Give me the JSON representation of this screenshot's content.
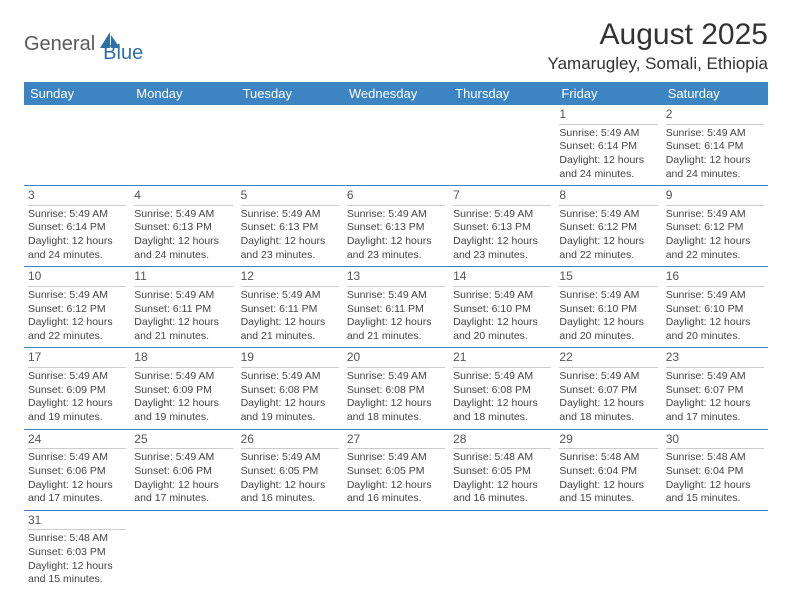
{
  "logo": {
    "general": "General",
    "blue": "Blue"
  },
  "title": "August 2025",
  "location": "Yamarugley, Somali, Ethiopia",
  "colors": {
    "header_bg": "#3d84c3",
    "header_text": "#ffffff",
    "row_border": "#3d84c3",
    "day_divider": "#cccccc",
    "logo_gray": "#5a5a5a",
    "logo_blue": "#2f6fa8",
    "body_text": "#444444",
    "title_text": "#333333"
  },
  "weekdays": [
    "Sunday",
    "Monday",
    "Tuesday",
    "Wednesday",
    "Thursday",
    "Friday",
    "Saturday"
  ],
  "first_weekday_index": 5,
  "days": [
    {
      "n": 1,
      "sunrise": "5:49 AM",
      "sunset": "6:14 PM",
      "daylight": "12 hours and 24 minutes."
    },
    {
      "n": 2,
      "sunrise": "5:49 AM",
      "sunset": "6:14 PM",
      "daylight": "12 hours and 24 minutes."
    },
    {
      "n": 3,
      "sunrise": "5:49 AM",
      "sunset": "6:14 PM",
      "daylight": "12 hours and 24 minutes."
    },
    {
      "n": 4,
      "sunrise": "5:49 AM",
      "sunset": "6:13 PM",
      "daylight": "12 hours and 24 minutes."
    },
    {
      "n": 5,
      "sunrise": "5:49 AM",
      "sunset": "6:13 PM",
      "daylight": "12 hours and 23 minutes."
    },
    {
      "n": 6,
      "sunrise": "5:49 AM",
      "sunset": "6:13 PM",
      "daylight": "12 hours and 23 minutes."
    },
    {
      "n": 7,
      "sunrise": "5:49 AM",
      "sunset": "6:13 PM",
      "daylight": "12 hours and 23 minutes."
    },
    {
      "n": 8,
      "sunrise": "5:49 AM",
      "sunset": "6:12 PM",
      "daylight": "12 hours and 22 minutes."
    },
    {
      "n": 9,
      "sunrise": "5:49 AM",
      "sunset": "6:12 PM",
      "daylight": "12 hours and 22 minutes."
    },
    {
      "n": 10,
      "sunrise": "5:49 AM",
      "sunset": "6:12 PM",
      "daylight": "12 hours and 22 minutes."
    },
    {
      "n": 11,
      "sunrise": "5:49 AM",
      "sunset": "6:11 PM",
      "daylight": "12 hours and 21 minutes."
    },
    {
      "n": 12,
      "sunrise": "5:49 AM",
      "sunset": "6:11 PM",
      "daylight": "12 hours and 21 minutes."
    },
    {
      "n": 13,
      "sunrise": "5:49 AM",
      "sunset": "6:11 PM",
      "daylight": "12 hours and 21 minutes."
    },
    {
      "n": 14,
      "sunrise": "5:49 AM",
      "sunset": "6:10 PM",
      "daylight": "12 hours and 20 minutes."
    },
    {
      "n": 15,
      "sunrise": "5:49 AM",
      "sunset": "6:10 PM",
      "daylight": "12 hours and 20 minutes."
    },
    {
      "n": 16,
      "sunrise": "5:49 AM",
      "sunset": "6:10 PM",
      "daylight": "12 hours and 20 minutes."
    },
    {
      "n": 17,
      "sunrise": "5:49 AM",
      "sunset": "6:09 PM",
      "daylight": "12 hours and 19 minutes."
    },
    {
      "n": 18,
      "sunrise": "5:49 AM",
      "sunset": "6:09 PM",
      "daylight": "12 hours and 19 minutes."
    },
    {
      "n": 19,
      "sunrise": "5:49 AM",
      "sunset": "6:08 PM",
      "daylight": "12 hours and 19 minutes."
    },
    {
      "n": 20,
      "sunrise": "5:49 AM",
      "sunset": "6:08 PM",
      "daylight": "12 hours and 18 minutes."
    },
    {
      "n": 21,
      "sunrise": "5:49 AM",
      "sunset": "6:08 PM",
      "daylight": "12 hours and 18 minutes."
    },
    {
      "n": 22,
      "sunrise": "5:49 AM",
      "sunset": "6:07 PM",
      "daylight": "12 hours and 18 minutes."
    },
    {
      "n": 23,
      "sunrise": "5:49 AM",
      "sunset": "6:07 PM",
      "daylight": "12 hours and 17 minutes."
    },
    {
      "n": 24,
      "sunrise": "5:49 AM",
      "sunset": "6:06 PM",
      "daylight": "12 hours and 17 minutes."
    },
    {
      "n": 25,
      "sunrise": "5:49 AM",
      "sunset": "6:06 PM",
      "daylight": "12 hours and 17 minutes."
    },
    {
      "n": 26,
      "sunrise": "5:49 AM",
      "sunset": "6:05 PM",
      "daylight": "12 hours and 16 minutes."
    },
    {
      "n": 27,
      "sunrise": "5:49 AM",
      "sunset": "6:05 PM",
      "daylight": "12 hours and 16 minutes."
    },
    {
      "n": 28,
      "sunrise": "5:48 AM",
      "sunset": "6:05 PM",
      "daylight": "12 hours and 16 minutes."
    },
    {
      "n": 29,
      "sunrise": "5:48 AM",
      "sunset": "6:04 PM",
      "daylight": "12 hours and 15 minutes."
    },
    {
      "n": 30,
      "sunrise": "5:48 AM",
      "sunset": "6:04 PM",
      "daylight": "12 hours and 15 minutes."
    },
    {
      "n": 31,
      "sunrise": "5:48 AM",
      "sunset": "6:03 PM",
      "daylight": "12 hours and 15 minutes."
    }
  ],
  "labels": {
    "sunrise": "Sunrise:",
    "sunset": "Sunset:",
    "daylight": "Daylight:"
  }
}
